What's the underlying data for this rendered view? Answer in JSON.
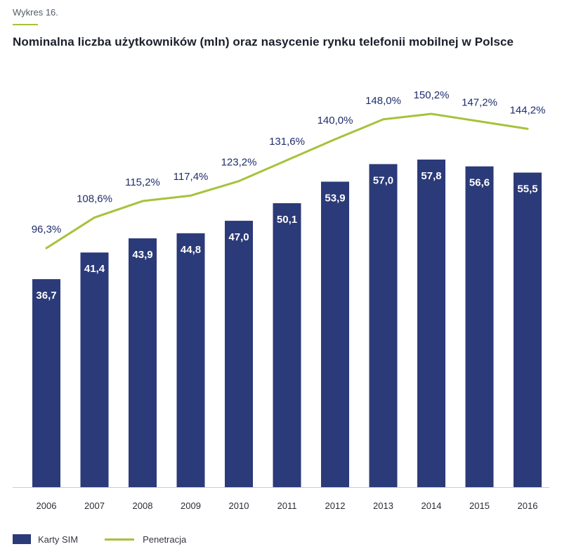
{
  "header": {
    "figure_label": "Wykres 16.",
    "title": "Nominalna liczba użytkowników (mln) oraz nasycenie rynku telefonii mobilnej w Polsce"
  },
  "colors": {
    "bar": "#2b3a78",
    "line": "#a6c23b",
    "accent": "#a6c23b",
    "text_dark": "#1f2d6b",
    "axis": "#cccccc"
  },
  "chart_data": {
    "type": "bar",
    "title": "Nominalna liczba użytkowników (mln) oraz nasycenie rynku telefonii mobilnej w Polsce",
    "categories": [
      "2006",
      "2007",
      "2008",
      "2009",
      "2010",
      "2011",
      "2012",
      "2013",
      "2014",
      "2015",
      "2016"
    ],
    "series": [
      {
        "name": "Karty SIM",
        "type": "bar",
        "values": [
          36.7,
          41.4,
          43.9,
          44.8,
          47.0,
          50.1,
          53.9,
          57.0,
          57.8,
          56.6,
          55.5
        ],
        "labels": [
          "36,7",
          "41,4",
          "43,9",
          "44,8",
          "47,0",
          "50,1",
          "53,9",
          "57,0",
          "57,8",
          "56,6",
          "55,5"
        ]
      },
      {
        "name": "Penetracja",
        "type": "line",
        "values": [
          96.3,
          108.6,
          115.2,
          117.4,
          123.2,
          131.6,
          140.0,
          148.0,
          150.2,
          147.2,
          144.2
        ],
        "labels": [
          "96,3%",
          "108,6%",
          "115,2%",
          "117,4%",
          "123,2%",
          "131,6%",
          "140,0%",
          "148,0%",
          "150,2%",
          "147,2%",
          "144,2%"
        ]
      }
    ],
    "ylim_bars": [
      0,
      57.8
    ],
    "ylim_line": [
      96.3,
      150.2
    ],
    "xlabel": "",
    "ylabel": "",
    "grid": false,
    "legend": "bottom-left"
  },
  "legend": {
    "bar_label": "Karty SIM",
    "line_label": "Penetracja"
  }
}
